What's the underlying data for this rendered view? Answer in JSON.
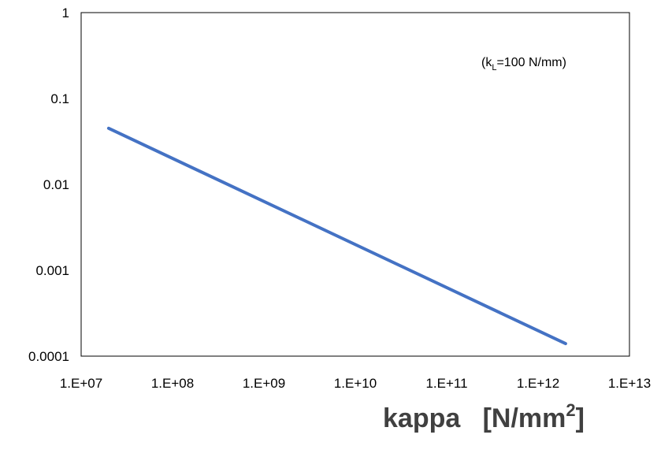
{
  "chart_data": {
    "type": "line",
    "scale": {
      "x": "log",
      "y": "log"
    },
    "xlim": [
      10000000,
      10000000000000
    ],
    "ylim": [
      0.0001,
      1
    ],
    "x_tick_labels": [
      "1.E+07",
      "1.E+08",
      "1.E+09",
      "1.E+10",
      "1.E+11",
      "1.E+12",
      "1.E+13"
    ],
    "y_tick_labels": [
      "0.0001",
      "0.001",
      "0.01",
      "0.1",
      "1"
    ],
    "xlabel": {
      "main": "kappa",
      "unit_prefix": "[N/mm",
      "unit_sup": "2",
      "unit_suffix": "]"
    },
    "ylabel": "",
    "annotation": {
      "prefix": "(k",
      "sub": "L",
      "suffix": "=100 N/mm)"
    },
    "grid": false,
    "series": [
      {
        "color": "#4472C4",
        "x": [
          20000000,
          2000000000000
        ],
        "y": [
          0.045,
          0.00014
        ]
      }
    ]
  }
}
